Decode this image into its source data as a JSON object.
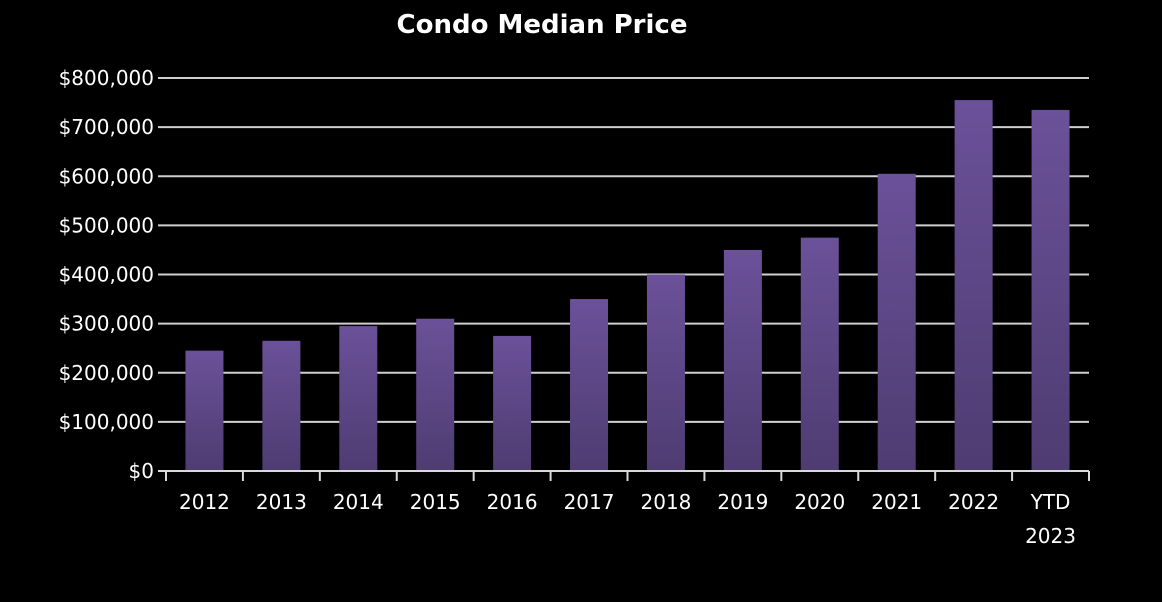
{
  "chart_data": {
    "type": "bar",
    "title": "Condo Median Price",
    "xlabel": "",
    "ylabel": "",
    "categories": [
      "2012",
      "2013",
      "2014",
      "2015",
      "2016",
      "2017",
      "2018",
      "2019",
      "2020",
      "2021",
      "2022",
      "YTD 2023"
    ],
    "category_label_lines": [
      [
        "2012"
      ],
      [
        "2013"
      ],
      [
        "2014"
      ],
      [
        "2015"
      ],
      [
        "2016"
      ],
      [
        "2017"
      ],
      [
        "2018"
      ],
      [
        "2019"
      ],
      [
        "2020"
      ],
      [
        "2021"
      ],
      [
        "2022"
      ],
      [
        "YTD",
        "2023"
      ]
    ],
    "values": [
      245000,
      265000,
      295000,
      310000,
      275000,
      350000,
      400000,
      450000,
      475000,
      605000,
      755000,
      735000
    ],
    "ylim": [
      0,
      800000
    ],
    "yticks": [
      0,
      100000,
      200000,
      300000,
      400000,
      500000,
      600000,
      700000,
      800000
    ],
    "ytick_labels": [
      "$0",
      "$100,000",
      "$200,000",
      "$300,000",
      "$400,000",
      "$500,000",
      "$600,000",
      "$700,000",
      "$800,000"
    ],
    "grid": true,
    "legend": "none",
    "colors": {
      "background": "#000000",
      "bar_top": "#6b5199",
      "bar_bottom": "#4e3c71",
      "grid": "#cfcfcf",
      "axis": "#d9d9d9",
      "text": "#ffffff"
    }
  }
}
